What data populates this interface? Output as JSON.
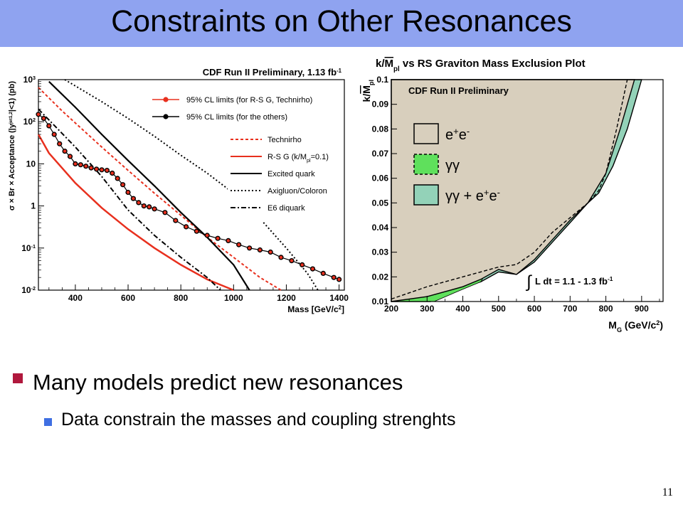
{
  "slide": {
    "title": "Constraints on Other Resonances",
    "bullets": [
      "Many models predict new resonances",
      "Data constrain the masses and coupling strenghts"
    ],
    "page_number": "11"
  },
  "colors": {
    "title_bar": "#8fa3f0",
    "bullet_1": "#b0183d",
    "bullet_2": "#3f6fe2",
    "red": "#e8301e",
    "black": "#000000",
    "ee_fill": "#d8cfbd",
    "gg_fill": "#5fe05c",
    "comb_fill": "#93d2b8"
  },
  "chart_data": [
    {
      "type": "line",
      "title": "CDF Run II Preliminary, 1.13 fb",
      "title_sup": "-1",
      "ylabel_parts": [
        "σ × Br × Acceptance (|y",
        "jet1,2",
        "|<1) (pb)"
      ],
      "xlabel_parts": [
        "Mass [GeV/c",
        "2",
        "]"
      ],
      "log_y": true,
      "xlim": [
        260,
        1420
      ],
      "ylim": [
        0.01,
        1000
      ],
      "x_ticks": [
        400,
        600,
        800,
        1000,
        1200,
        1400
      ],
      "y_tick_labels": [
        {
          "v": 1000,
          "base": "10",
          "exp": "3"
        },
        {
          "v": 100,
          "base": "10",
          "exp": "2"
        },
        {
          "v": 10,
          "base": "10",
          "exp": ""
        },
        {
          "v": 1,
          "base": "1",
          "exp": ""
        },
        {
          "v": 0.1,
          "base": "10",
          "exp": "-1"
        },
        {
          "v": 0.01,
          "base": "10",
          "exp": "-2"
        }
      ],
      "legend_placement": "top-right",
      "markers_legend": [
        {
          "label": "95% CL limits (for R-S G, Technirho)",
          "color": "#e8301e"
        },
        {
          "label": "95% CL limits (for the others)",
          "color": "#000000"
        }
      ],
      "lines_legend": [
        {
          "label": "Technirho",
          "color": "#e8301e",
          "dash": "4,3"
        },
        {
          "label": "R-S G (k/M",
          "label_sub": "pl",
          "label_end": "=0.1)",
          "color": "#e8301e",
          "dash": ""
        },
        {
          "label": "Excited quark",
          "color": "#000000",
          "dash": ""
        },
        {
          "label": "Axigluon/Coloron",
          "color": "#000000",
          "dash": "2,3"
        },
        {
          "label": "E6 diquark",
          "color": "#000000",
          "dash": "7,3,2,3"
        }
      ],
      "series": [
        {
          "name": "Technirho",
          "color": "#e8301e",
          "dash": "4,3",
          "width": 2,
          "x": [
            260,
            350,
            500,
            600,
            700,
            800,
            900,
            1000,
            1100,
            1180
          ],
          "y": [
            650,
            180,
            25,
            7,
            2,
            0.6,
            0.18,
            0.06,
            0.02,
            0.01
          ]
        },
        {
          "name": "R-S G (k/M_pl=0.1)",
          "color": "#e8301e",
          "dash": "",
          "width": 2.5,
          "x": [
            260,
            300,
            400,
            500,
            600,
            700,
            800,
            900,
            1000
          ],
          "y": [
            50,
            18,
            3.5,
            0.9,
            0.28,
            0.1,
            0.04,
            0.018,
            0.01
          ]
        },
        {
          "name": "Excited quark",
          "color": "#000000",
          "dash": "",
          "width": 2.2,
          "x": [
            300,
            400,
            500,
            600,
            700,
            800,
            900,
            1000,
            1060
          ],
          "y": [
            900,
            220,
            50,
            12,
            3,
            0.7,
            0.18,
            0.04,
            0.01
          ]
        },
        {
          "name": "Axigluon/Coloron",
          "color": "#000000",
          "dash": "2,3",
          "width": 2,
          "x": [
            360,
            500,
            600,
            700,
            800,
            900,
            1000,
            1100,
            1200,
            1280,
            1320
          ],
          "y": [
            1000,
            300,
            120,
            45,
            16,
            6,
            2,
            0.5,
            0.1,
            0.025,
            0.01
          ]
        },
        {
          "name": "E6 diquark",
          "color": "#000000",
          "dash": "7,3,2,3",
          "width": 2,
          "x": [
            260,
            400,
            500,
            600,
            700,
            800,
            900,
            950
          ],
          "y": [
            200,
            25,
            5,
            0.8,
            0.2,
            0.06,
            0.02,
            0.01
          ]
        },
        {
          "name": "95% CL limits (for the others)",
          "color": "#000000",
          "dash": "",
          "width": 1.2,
          "marker_color": "#000000",
          "x": [
            260,
            280,
            300,
            320,
            340,
            360,
            380,
            400,
            420,
            440,
            460,
            480,
            500,
            520,
            540,
            560,
            580,
            600,
            620,
            640,
            660,
            680,
            700,
            740,
            780,
            820,
            860,
            900,
            940,
            980,
            1020,
            1060,
            1100,
            1140,
            1180,
            1220,
            1260,
            1300,
            1340,
            1380,
            1400
          ],
          "y": [
            150,
            120,
            80,
            50,
            30,
            20,
            15,
            10,
            9.5,
            8.8,
            8,
            7.5,
            7.2,
            7,
            6,
            4.5,
            3.2,
            2.1,
            1.5,
            1.2,
            1.0,
            0.95,
            0.85,
            0.7,
            0.45,
            0.32,
            0.25,
            0.2,
            0.17,
            0.15,
            0.12,
            0.1,
            0.09,
            0.08,
            0.06,
            0.05,
            0.04,
            0.032,
            0.025,
            0.02,
            0.018
          ]
        },
        {
          "name": "95% CL limits (for R-S G, Technirho)",
          "color": "#e8301e",
          "dash": "",
          "width": 0,
          "marker_color": "#e8301e",
          "marker_r": 2.2,
          "x": [
            260,
            280,
            300,
            320,
            340,
            360,
            380,
            400,
            420,
            440,
            460,
            480,
            500,
            520,
            540,
            560,
            580,
            600,
            620,
            640,
            660,
            680,
            700,
            740,
            780,
            820,
            860,
            900,
            940,
            980,
            1020,
            1060,
            1100,
            1140,
            1180,
            1220,
            1260,
            1300,
            1340,
            1380,
            1400
          ],
          "y": [
            150,
            120,
            80,
            50,
            30,
            20,
            15,
            10,
            9.5,
            8.8,
            8,
            7.5,
            7.2,
            7,
            6,
            4.5,
            3.2,
            2.1,
            1.5,
            1.2,
            1.0,
            0.95,
            0.85,
            0.7,
            0.45,
            0.32,
            0.25,
            0.2,
            0.17,
            0.15,
            0.12,
            0.1,
            0.09,
            0.08,
            0.06,
            0.05,
            0.04,
            0.032,
            0.025,
            0.02,
            0.018
          ]
        }
      ]
    },
    {
      "type": "area",
      "title_parts": [
        "k/",
        "M",
        "pl",
        " vs RS Graviton Mass Exclusion Plot"
      ],
      "inner_label": "CDF Run II Preliminary",
      "ylabel_parts": [
        "k/",
        "M",
        "pl"
      ],
      "xlabel_parts": [
        "M",
        "G",
        " (GeV/c",
        "2",
        ")"
      ],
      "xlim": [
        200,
        960
      ],
      "ylim": [
        0.01,
        0.1
      ],
      "x_ticks": [
        200,
        300,
        400,
        500,
        600,
        700,
        800,
        900
      ],
      "y_ticks": [
        0.01,
        0.02,
        0.03,
        0.04,
        0.05,
        0.06,
        0.07,
        0.08,
        0.09,
        0.1
      ],
      "y_tick_labels": [
        "0.01",
        "0.02",
        "0.03",
        "0.04",
        "0.05",
        "0.06",
        "0.07",
        "0.08",
        "0.09",
        "0.1"
      ],
      "legend": [
        {
          "label": "e",
          "sup1": "+",
          "mid": "e",
          "sup2": "-",
          "fill": "#d8cfbd",
          "dashed": false
        },
        {
          "label": "γγ",
          "fill": "#5fe05c",
          "dashed": true
        },
        {
          "label": "γγ + e",
          "sup1": "+",
          "mid": "e",
          "sup2": "-",
          "fill": "#93d2b8",
          "dashed": false
        }
      ],
      "lumi_parts": [
        "∫",
        " L dt =  1.1 - 1.3 fb",
        "-1"
      ],
      "ee_boundary": {
        "x": [
          200,
          300,
          400,
          450,
          500,
          550,
          600,
          650,
          700,
          750,
          800,
          840,
          880
        ],
        "y": [
          0.01,
          0.012,
          0.016,
          0.019,
          0.023,
          0.021,
          0.027,
          0.035,
          0.043,
          0.05,
          0.062,
          0.08,
          0.1
        ]
      },
      "gg_boundary": {
        "x": [
          320,
          400,
          450,
          480,
          500,
          520,
          550,
          600,
          650,
          700,
          750,
          770,
          800,
          830
        ],
        "y": [
          0.01,
          0.015,
          0.018,
          0.025,
          0.031,
          0.03,
          0.029,
          0.034,
          0.04,
          0.053,
          0.068,
          0.08,
          0.092,
          0.1
        ]
      },
      "combined_boundary": {
        "x": [
          310,
          350,
          400,
          450,
          500,
          550,
          600,
          650,
          700,
          750,
          780,
          820,
          860,
          900
        ],
        "y": [
          0.01,
          0.013,
          0.016,
          0.018,
          0.022,
          0.021,
          0.026,
          0.034,
          0.042,
          0.05,
          0.054,
          0.065,
          0.08,
          0.1
        ]
      },
      "dashed_boundary": {
        "x": [
          200,
          300,
          400,
          450,
          500,
          550,
          600,
          650,
          700,
          750,
          780,
          800,
          830,
          860
        ],
        "y": [
          0.011,
          0.016,
          0.02,
          0.022,
          0.024,
          0.025,
          0.03,
          0.038,
          0.044,
          0.05,
          0.055,
          0.062,
          0.08,
          0.1
        ]
      }
    }
  ]
}
